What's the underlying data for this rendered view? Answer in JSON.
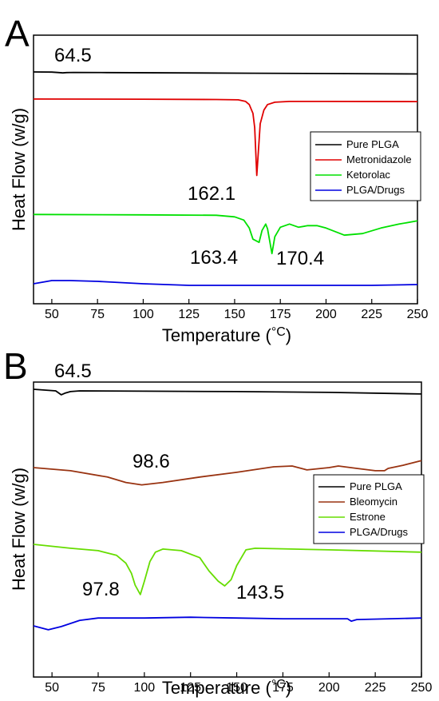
{
  "chart_data": [
    {
      "panel": "A",
      "type": "line",
      "xlabel": "Temperature (°C)",
      "ylabel": "Heat Flow (w/g)",
      "xlim": [
        40,
        250
      ],
      "xticks": [
        50,
        75,
        100,
        125,
        150,
        175,
        200,
        225,
        250
      ],
      "legend_position": "right",
      "series": [
        {
          "name": "Pure PLGA",
          "color": "#000000",
          "x": [
            40,
            50,
            54,
            56,
            58,
            62,
            80,
            120,
            160,
            200,
            250
          ],
          "y": [
            0.0,
            -0.2,
            -0.8,
            -1.2,
            -0.8,
            -0.6,
            -0.8,
            -1.2,
            -1.6,
            -2.0,
            -2.5
          ]
        },
        {
          "name": "Metronidazole",
          "color": "#e00000",
          "x": [
            40,
            100,
            140,
            152,
            156,
            158,
            160,
            161,
            162.1,
            163,
            164,
            166,
            168,
            172,
            180,
            200,
            250
          ],
          "y": [
            -34,
            -34.2,
            -34.6,
            -35,
            -37,
            -41,
            -52,
            -70,
            -130,
            -100,
            -65,
            -48,
            -41,
            -38,
            -37,
            -37,
            -37.2
          ]
        },
        {
          "name": "Ketorolac",
          "color": "#00e000",
          "x": [
            40,
            100,
            140,
            150,
            155,
            158,
            160,
            163.4,
            165,
            167,
            168,
            170.4,
            172,
            175,
            180,
            185,
            190,
            195,
            200,
            210,
            220,
            230,
            240,
            250
          ],
          "y": [
            -179,
            -179.5,
            -180,
            -182,
            -186,
            -196,
            -210,
            -214,
            -199,
            -191,
            -197,
            -228,
            -207,
            -195,
            -191,
            -195,
            -193,
            -193,
            -196,
            -205,
            -203,
            -196,
            -191,
            -187
          ]
        },
        {
          "name": "PLGA/Drugs",
          "color": "#0000e0",
          "x": [
            40,
            50,
            60,
            75,
            100,
            125,
            150,
            175,
            200,
            225,
            250
          ],
          "y": [
            -266,
            -262,
            -262,
            -263,
            -266,
            -268,
            -268,
            -268,
            -268,
            -268,
            -267
          ]
        }
      ],
      "annotations": [
        "64.5",
        "162.1",
        "163.4",
        "170.4"
      ]
    },
    {
      "panel": "B",
      "type": "line",
      "xlabel": "Temperature (°C)",
      "ylabel": "Heat Flow (w/g)",
      "xlim": [
        40,
        250
      ],
      "xticks": [
        50,
        75,
        100,
        125,
        150,
        175,
        200,
        225,
        250
      ],
      "legend_position": "right",
      "series": [
        {
          "name": "Pure PLGA",
          "color": "#000000",
          "x": [
            40,
            52,
            55,
            57,
            60,
            65,
            100,
            150,
            200,
            250
          ],
          "y": [
            0,
            -2,
            -7,
            -5,
            -3,
            -2,
            -2.5,
            -3,
            -4,
            -6
          ]
        },
        {
          "name": "Bleomycin",
          "color": "#993311",
          "x": [
            40,
            60,
            80,
            90,
            98.6,
            110,
            130,
            150,
            170,
            180,
            188,
            200,
            205,
            215,
            225,
            230,
            232,
            240,
            250
          ],
          "y": [
            -100,
            -104,
            -112,
            -119,
            -122,
            -119,
            -112,
            -106,
            -99,
            -98,
            -103,
            -100,
            -98,
            -101,
            -104,
            -104,
            -101,
            -97,
            -91
          ]
        },
        {
          "name": "Estrone",
          "color": "#66dd00",
          "x": [
            40,
            60,
            75,
            85,
            90,
            93,
            95,
            97.8,
            100,
            103,
            106,
            110,
            120,
            130,
            135,
            140,
            143.5,
            147,
            150,
            155,
            160,
            200,
            250
          ],
          "y": [
            -198,
            -203,
            -206,
            -212,
            -222,
            -235,
            -250,
            -262,
            -245,
            -220,
            -208,
            -204,
            -206,
            -215,
            -232,
            -245,
            -251,
            -243,
            -225,
            -205,
            -203,
            -205,
            -208
          ]
        },
        {
          "name": "PLGA/Drugs",
          "color": "#0000e0",
          "x": [
            40,
            48,
            55,
            65,
            75,
            100,
            125,
            150,
            175,
            200,
            210,
            212,
            215,
            250
          ],
          "y": [
            -302,
            -307,
            -303,
            -295,
            -292,
            -292,
            -291,
            -292,
            -293,
            -293,
            -293,
            -296,
            -294,
            -292
          ]
        }
      ],
      "annotations": [
        "64.5",
        "98.6",
        "97.8",
        "143.5"
      ]
    }
  ],
  "panelA": {
    "letter": "A",
    "ylabel": "Heat Flow (w/g)",
    "xlabel_prefix": "Temperature (",
    "xlabel_unit": "°C",
    "xlabel_suffix": ")",
    "annotations": {
      "a1": "64.5",
      "a2": "162.1",
      "a3": "163.4",
      "a4": "170.4"
    },
    "legend": [
      "Pure PLGA",
      "Metronidazole",
      "Ketorolac",
      "PLGA/Drugs"
    ]
  },
  "panelB": {
    "letter": "B",
    "ylabel": "Heat Flow (w/g)",
    "xlabel_prefix": "Temperature (",
    "xlabel_unit": "°C",
    "xlabel_suffix": ")",
    "annotations": {
      "b1": "64.5",
      "b2": "98.6",
      "b3": "97.8",
      "b4": "143.5"
    },
    "legend": [
      "Pure PLGA",
      "Bleomycin",
      "Estrone",
      "PLGA/Drugs"
    ]
  }
}
